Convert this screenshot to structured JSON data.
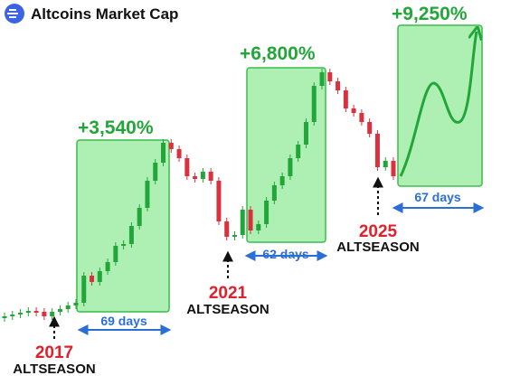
{
  "chart_data": {
    "type": "candlestick",
    "title": "Altcoins Market Cap",
    "values": [
      71,
      73,
      75,
      77,
      76,
      71,
      76,
      79,
      83,
      86,
      116,
      109,
      121,
      131,
      149,
      151,
      171,
      191,
      221,
      241,
      263,
      256,
      246,
      226,
      223,
      231,
      221,
      176,
      159,
      161,
      189,
      166,
      173,
      199,
      216,
      226,
      246,
      261,
      286,
      326,
      341,
      331,
      321,
      301,
      296,
      286,
      273,
      236,
      243,
      226
    ],
    "up_color": "#22a63a",
    "down_color": "#d9313e",
    "seasons": [
      {
        "gain": "+3,540%",
        "duration": "69 days",
        "year": "2017",
        "label": "ALTSEASON"
      },
      {
        "gain": "+6,800%",
        "duration": "62 days",
        "year": "2021",
        "label": "ALTSEASON"
      },
      {
        "gain": "+9,250%",
        "duration": "67 days",
        "year": "2025",
        "label": "ALTSEASON"
      }
    ]
  }
}
